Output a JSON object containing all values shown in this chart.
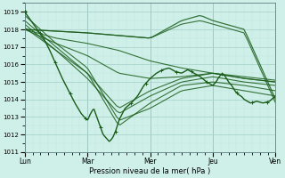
{
  "bg_color": "#cff0e8",
  "grid_color_major": "#aad4cc",
  "grid_color_minor": "#c0e4dc",
  "line_color": "#1a5c1a",
  "xlabel": "Pression niveau de la mer( hPa )",
  "xtick_labels": [
    "Lun",
    "Mar",
    "Mer",
    "Jeu",
    "Ven"
  ],
  "xtick_pos": [
    0,
    1,
    2,
    3,
    4
  ],
  "ylim": [
    1011,
    1019.5
  ],
  "yticks": [
    1011,
    1012,
    1013,
    1014,
    1015,
    1016,
    1017,
    1018,
    1019
  ],
  "figsize": [
    3.2,
    2.0
  ],
  "dpi": 100,
  "ensemble_lines": [
    {
      "ctrl": [
        [
          0,
          1018.8
        ],
        [
          0.5,
          1017.2
        ],
        [
          1.0,
          1015.8
        ],
        [
          1.5,
          1012.8
        ],
        [
          2.0,
          1013.5
        ],
        [
          2.5,
          1014.5
        ],
        [
          3.0,
          1014.8
        ],
        [
          3.5,
          1014.5
        ],
        [
          4.0,
          1014.2
        ]
      ],
      "lw": 0.8
    },
    {
      "ctrl": [
        [
          0,
          1018.5
        ],
        [
          0.5,
          1017.0
        ],
        [
          1.0,
          1015.5
        ],
        [
          1.5,
          1012.5
        ],
        [
          2.0,
          1013.8
        ],
        [
          2.5,
          1014.8
        ],
        [
          3.0,
          1015.0
        ],
        [
          3.5,
          1014.8
        ],
        [
          4.0,
          1014.5
        ]
      ],
      "lw": 0.8
    },
    {
      "ctrl": [
        [
          0,
          1018.3
        ],
        [
          0.5,
          1016.8
        ],
        [
          1.0,
          1015.2
        ],
        [
          1.5,
          1013.2
        ],
        [
          2.0,
          1014.2
        ],
        [
          2.5,
          1015.0
        ],
        [
          3.0,
          1015.3
        ],
        [
          3.5,
          1015.0
        ],
        [
          4.0,
          1014.8
        ]
      ],
      "lw": 0.8
    },
    {
      "ctrl": [
        [
          0,
          1018.1
        ],
        [
          0.5,
          1016.8
        ],
        [
          1.0,
          1015.5
        ],
        [
          1.5,
          1013.5
        ],
        [
          2.0,
          1014.5
        ],
        [
          2.5,
          1015.2
        ],
        [
          3.0,
          1015.5
        ],
        [
          3.5,
          1015.2
        ],
        [
          4.0,
          1015.0
        ]
      ],
      "lw": 0.8
    },
    {
      "ctrl": [
        [
          0,
          1018.0
        ],
        [
          0.5,
          1017.2
        ],
        [
          1.0,
          1016.5
        ],
        [
          1.5,
          1015.5
        ],
        [
          2.0,
          1015.2
        ],
        [
          2.5,
          1015.3
        ],
        [
          3.0,
          1015.5
        ],
        [
          3.5,
          1015.3
        ],
        [
          4.0,
          1015.1
        ]
      ],
      "lw": 0.8
    },
    {
      "ctrl": [
        [
          0,
          1018.0
        ],
        [
          0.5,
          1017.5
        ],
        [
          1.0,
          1017.2
        ],
        [
          1.5,
          1016.8
        ],
        [
          2.0,
          1016.2
        ],
        [
          2.5,
          1015.8
        ],
        [
          3.0,
          1015.5
        ],
        [
          3.5,
          1015.2
        ],
        [
          4.0,
          1015.0
        ]
      ],
      "lw": 0.8
    },
    {
      "ctrl": [
        [
          0,
          1018.0
        ],
        [
          1.0,
          1017.8
        ],
        [
          2.0,
          1017.5
        ],
        [
          2.5,
          1018.5
        ],
        [
          2.8,
          1018.8
        ],
        [
          3.0,
          1018.5
        ],
        [
          3.3,
          1018.2
        ],
        [
          3.5,
          1018.0
        ],
        [
          4.0,
          1014.0
        ]
      ],
      "lw": 0.9
    },
    {
      "ctrl": [
        [
          0,
          1018.0
        ],
        [
          1.0,
          1017.8
        ],
        [
          2.0,
          1017.5
        ],
        [
          2.5,
          1018.3
        ],
        [
          2.8,
          1018.5
        ],
        [
          3.0,
          1018.3
        ],
        [
          3.3,
          1018.0
        ],
        [
          3.5,
          1017.8
        ],
        [
          4.0,
          1013.8
        ]
      ],
      "lw": 0.8
    }
  ],
  "main_line": {
    "ctrl": [
      [
        0,
        1019.0
      ],
      [
        0.1,
        1018.5
      ],
      [
        0.2,
        1018.0
      ],
      [
        0.3,
        1017.5
      ],
      [
        0.4,
        1016.8
      ],
      [
        0.5,
        1016.0
      ],
      [
        0.6,
        1015.2
      ],
      [
        0.7,
        1014.5
      ],
      [
        0.8,
        1013.8
      ],
      [
        0.9,
        1013.2
      ],
      [
        1.0,
        1012.8
      ],
      [
        1.05,
        1013.2
      ],
      [
        1.1,
        1013.5
      ],
      [
        1.15,
        1013.0
      ],
      [
        1.2,
        1012.5
      ],
      [
        1.25,
        1012.0
      ],
      [
        1.3,
        1011.8
      ],
      [
        1.35,
        1011.6
      ],
      [
        1.4,
        1011.8
      ],
      [
        1.45,
        1012.2
      ],
      [
        1.5,
        1012.8
      ],
      [
        1.6,
        1013.5
      ],
      [
        1.7,
        1013.8
      ],
      [
        1.8,
        1014.2
      ],
      [
        1.9,
        1014.8
      ],
      [
        2.0,
        1015.2
      ],
      [
        2.1,
        1015.5
      ],
      [
        2.2,
        1015.7
      ],
      [
        2.3,
        1015.8
      ],
      [
        2.4,
        1015.6
      ],
      [
        2.5,
        1015.5
      ],
      [
        2.6,
        1015.7
      ],
      [
        2.7,
        1015.5
      ],
      [
        2.8,
        1015.3
      ],
      [
        2.9,
        1015.0
      ],
      [
        3.0,
        1014.8
      ],
      [
        3.05,
        1015.0
      ],
      [
        3.1,
        1015.3
      ],
      [
        3.15,
        1015.5
      ],
      [
        3.2,
        1015.3
      ],
      [
        3.25,
        1015.0
      ],
      [
        3.3,
        1014.8
      ],
      [
        3.35,
        1014.5
      ],
      [
        3.4,
        1014.3
      ],
      [
        3.45,
        1014.2
      ],
      [
        3.5,
        1014.0
      ],
      [
        3.6,
        1013.8
      ],
      [
        3.7,
        1013.9
      ],
      [
        3.8,
        1013.8
      ],
      [
        3.9,
        1013.9
      ],
      [
        4.0,
        1014.2
      ]
    ],
    "lw": 1.0,
    "marker": "+"
  }
}
